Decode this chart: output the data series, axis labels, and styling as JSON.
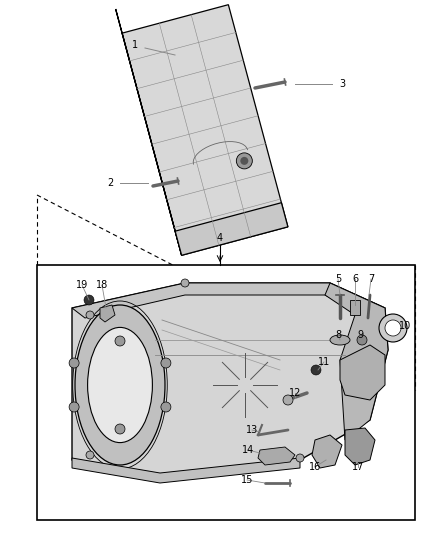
{
  "background_color": "#ffffff",
  "fig_width": 4.38,
  "fig_height": 5.33,
  "dpi": 100,
  "line_color": "#000000",
  "gray_light": "#e0e0e0",
  "gray_mid": "#c0c0c0",
  "gray_dark": "#888888",
  "gray_darker": "#555555"
}
